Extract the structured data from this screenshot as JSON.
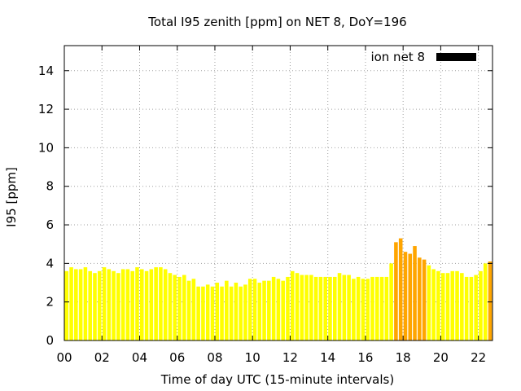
{
  "chart_data": {
    "type": "bar",
    "title": "Total I95 zenith [ppm] on NET 8, DoY=196",
    "xlabel": "Time of day UTC (15-minute intervals)",
    "ylabel": "I95 [ppm]",
    "xlim": [
      0,
      22.75
    ],
    "ylim": [
      0,
      15.3
    ],
    "x_ticks": [
      0,
      2,
      4,
      6,
      8,
      10,
      12,
      14,
      16,
      18,
      20,
      22
    ],
    "x_tick_labels": [
      "00",
      "02",
      "04",
      "06",
      "08",
      "10",
      "12",
      "14",
      "16",
      "18",
      "20",
      "22"
    ],
    "y_ticks": [
      0,
      2,
      4,
      6,
      8,
      10,
      12,
      14
    ],
    "y_tick_labels": [
      "0",
      "2",
      "4",
      "6",
      "8",
      "10",
      "12",
      "14"
    ],
    "grid": true,
    "legend": {
      "label": "ion net 8",
      "color": "#000000",
      "position": "top-right"
    },
    "interval_hours": 0.25,
    "threshold": 4.0,
    "colors": {
      "normal": "#ffff00",
      "elevated": "#ffa500",
      "grid": "#a0a0a0"
    },
    "series": [
      {
        "values": [
          3.6,
          3.8,
          3.7,
          3.7,
          3.8,
          3.6,
          3.5,
          3.6,
          3.8,
          3.7,
          3.6,
          3.5,
          3.7,
          3.7,
          3.6,
          3.8,
          3.7,
          3.6,
          3.7,
          3.8,
          3.8,
          3.7,
          3.5,
          3.4,
          3.3,
          3.4,
          3.1,
          3.2,
          2.8,
          2.8,
          2.9,
          2.8,
          3.0,
          2.8,
          3.1,
          2.8,
          3.0,
          2.8,
          2.9,
          3.2,
          3.2,
          3.0,
          3.1,
          3.1,
          3.3,
          3.2,
          3.1,
          3.3,
          3.6,
          3.5,
          3.4,
          3.4,
          3.4,
          3.3,
          3.3,
          3.3,
          3.3,
          3.3,
          3.5,
          3.4,
          3.4,
          3.2,
          3.3,
          3.2,
          3.2,
          3.3,
          3.3,
          3.3,
          3.3,
          4.0,
          5.1,
          5.3,
          4.6,
          4.5,
          4.9,
          4.3,
          4.2,
          3.9,
          3.7,
          3.6,
          3.5,
          3.5,
          3.6,
          3.6,
          3.5,
          3.3,
          3.3,
          3.4,
          3.6,
          4.0,
          4.1
        ]
      }
    ]
  }
}
